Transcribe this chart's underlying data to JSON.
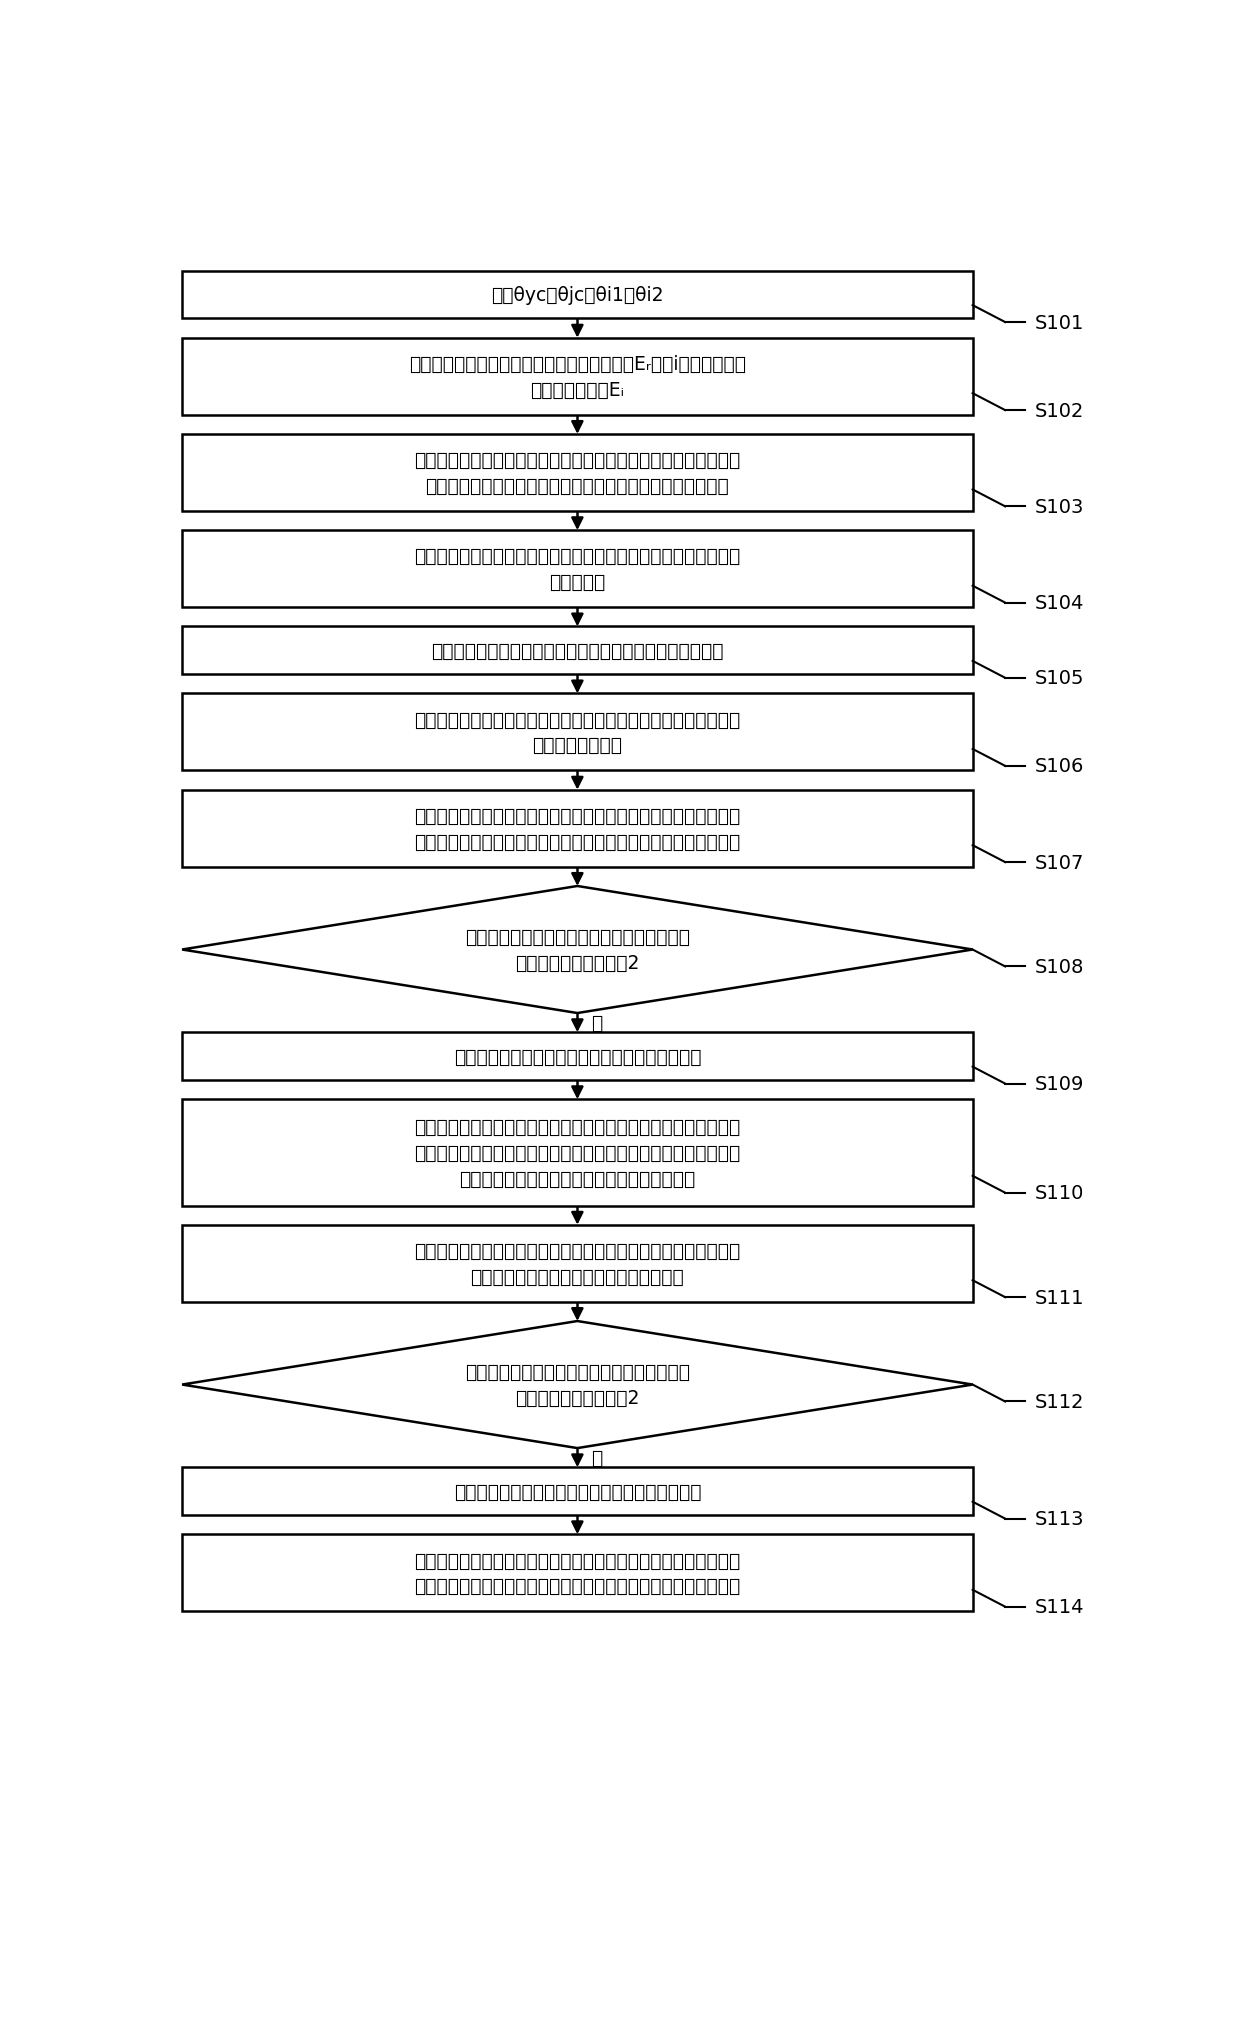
{
  "bg_color": "#ffffff",
  "box_color": "#ffffff",
  "box_edge_color": "#000000",
  "arrow_color": "#000000",
  "text_color": "#000000",
  "steps": [
    {
      "id": "S101",
      "type": "rect",
      "nlines": 1,
      "text": "获取θyc、θjc、θi1及θi2"
    },
    {
      "id": "S102",
      "type": "rect",
      "nlines": 2,
      "text": "确定用户站和基准站参考卫星高度角的平均値Eᵣ和第i个非参考卫星\n高度角的平均値Eᵢ"
    },
    {
      "id": "S103",
      "type": "rect",
      "nlines": 2,
      "text": "确定宽巷组合观测値、无电离层组合相位观测値、无电离层组合伪\n距观测値、原始伪距观测値、原始相位观测値分别对应的权重"
    },
    {
      "id": "S104",
      "type": "rect",
      "nlines": 2,
      "text": "根据多个高度角和不同观测値的权重确定不同卫星不同组合观测値\n的随机模型"
    },
    {
      "id": "S105",
      "type": "rect",
      "nlines": 1,
      "text": "获取用户站实时观测数据、基准站实时观测数据和广播星历"
    },
    {
      "id": "S106",
      "type": "rect",
      "nlines": 2,
      "text": "对双差伪距观测方程和相位宽巷组合观测方程进行解算，得到双差\n宽巷模糊度浮点解"
    },
    {
      "id": "S107",
      "type": "rect",
      "nlines": 2,
      "text": "采用最小二乘模糊度降相关平差法搜索双差宽巷模糊度的整数解，\n得到双差宽巷整周模糊度的最优解和双差宽巷整周模糊度的次优解"
    },
    {
      "id": "S108",
      "type": "diamond",
      "nlines": 2,
      "text": "判断双差宽巷整周模糊度的最优解和次优解的\n误差比率是否大于等于2"
    },
    {
      "id": "S109",
      "type": "rect",
      "nlines": 1,
      "text": "将所述双差宽巷整周模糊度用最优解组合进行固定"
    },
    {
      "id": "S110",
      "type": "rect",
      "nlines": 3,
      "text": "将双差宽巷整周模糊度固定的相位宽巷组合观测方程作为虚拟的伪\n距观测方程，对所述虚拟的伪距观测方程和载波相位无电离层组合\n观测方程进行解算，得到双差窄巷模糊度浮点解"
    },
    {
      "id": "S111",
      "type": "rect",
      "nlines": 2,
      "text": "采用最小二乘模糊度降相关平差法搜索双差窄巷模糊度的整数解，\n得到双差窄巷整周模糊度的最优解和次优解"
    },
    {
      "id": "S112",
      "type": "diamond",
      "nlines": 2,
      "text": "判断双差窄巷整周模糊度的最优解和次优解的\n误差比率是否大于等于2"
    },
    {
      "id": "S113",
      "type": "rect",
      "nlines": 1,
      "text": "将所述双差窄巷整周模糊度用最优解组合进行固定"
    },
    {
      "id": "S114",
      "type": "rect",
      "nlines": 2,
      "text": "根据固定的双差宽巷整周模糊度和固定的双差窄巷整周模糊度进行\n模糊度为固定整数解的实时动态定位解算，得到实时动态定位坐标"
    }
  ]
}
